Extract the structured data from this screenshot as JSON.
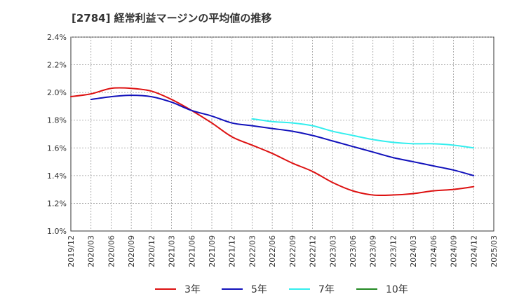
{
  "chart_data": {
    "type": "line",
    "title": "[2784]  経常利益マージンの平均値の推移",
    "xlabel": "",
    "ylabel": "",
    "ylim": [
      0.01,
      0.024
    ],
    "y_ticks": [
      "1.0%",
      "1.2%",
      "1.4%",
      "1.6%",
      "1.8%",
      "2.0%",
      "2.2%",
      "2.4%"
    ],
    "x_ticks": [
      "2019/12",
      "2020/03",
      "2020/06",
      "2020/09",
      "2020/12",
      "2021/03",
      "2021/06",
      "2021/09",
      "2021/12",
      "2022/03",
      "2022/06",
      "2022/09",
      "2022/12",
      "2023/03",
      "2023/06",
      "2023/09",
      "2023/12",
      "2024/03",
      "2024/06",
      "2024/09",
      "2024/12",
      "2025/03"
    ],
    "grid": true,
    "legend_position": "bottom",
    "series": [
      {
        "name": "3年",
        "color": "#dd1111",
        "x": [
          "2019/12",
          "2020/03",
          "2020/06",
          "2020/09",
          "2020/12",
          "2021/03",
          "2021/06",
          "2021/09",
          "2021/12",
          "2022/03",
          "2022/06",
          "2022/09",
          "2022/12",
          "2023/03",
          "2023/06",
          "2023/09",
          "2023/12",
          "2024/03",
          "2024/06",
          "2024/09",
          "2024/12"
        ],
        "values": [
          0.0197,
          0.0199,
          0.0203,
          0.0203,
          0.0201,
          0.0195,
          0.0187,
          0.0178,
          0.0168,
          0.0162,
          0.0156,
          0.0149,
          0.0143,
          0.0135,
          0.0129,
          0.0126,
          0.0126,
          0.0127,
          0.0129,
          0.013,
          0.0132
        ]
      },
      {
        "name": "5年",
        "color": "#1111bb",
        "x": [
          "2020/03",
          "2020/06",
          "2020/09",
          "2020/12",
          "2021/03",
          "2021/06",
          "2021/09",
          "2021/12",
          "2022/03",
          "2022/06",
          "2022/09",
          "2022/12",
          "2023/03",
          "2023/06",
          "2023/09",
          "2023/12",
          "2024/03",
          "2024/06",
          "2024/09",
          "2024/12"
        ],
        "values": [
          0.0195,
          0.0197,
          0.0198,
          0.0197,
          0.0193,
          0.0187,
          0.0183,
          0.0178,
          0.0176,
          0.0174,
          0.0172,
          0.0169,
          0.0165,
          0.0161,
          0.0157,
          0.0153,
          0.015,
          0.0147,
          0.0144,
          0.014
        ]
      },
      {
        "name": "7年",
        "color": "#33eeee",
        "x": [
          "2022/03",
          "2022/06",
          "2022/09",
          "2022/12",
          "2023/03",
          "2023/06",
          "2023/09",
          "2023/12",
          "2024/03",
          "2024/06",
          "2024/09",
          "2024/12"
        ],
        "values": [
          0.0181,
          0.0179,
          0.0178,
          0.0176,
          0.0172,
          0.0169,
          0.0166,
          0.0164,
          0.0163,
          0.0163,
          0.0162,
          0.016
        ]
      },
      {
        "name": "10年",
        "color": "#228822",
        "x": [],
        "values": []
      }
    ]
  }
}
